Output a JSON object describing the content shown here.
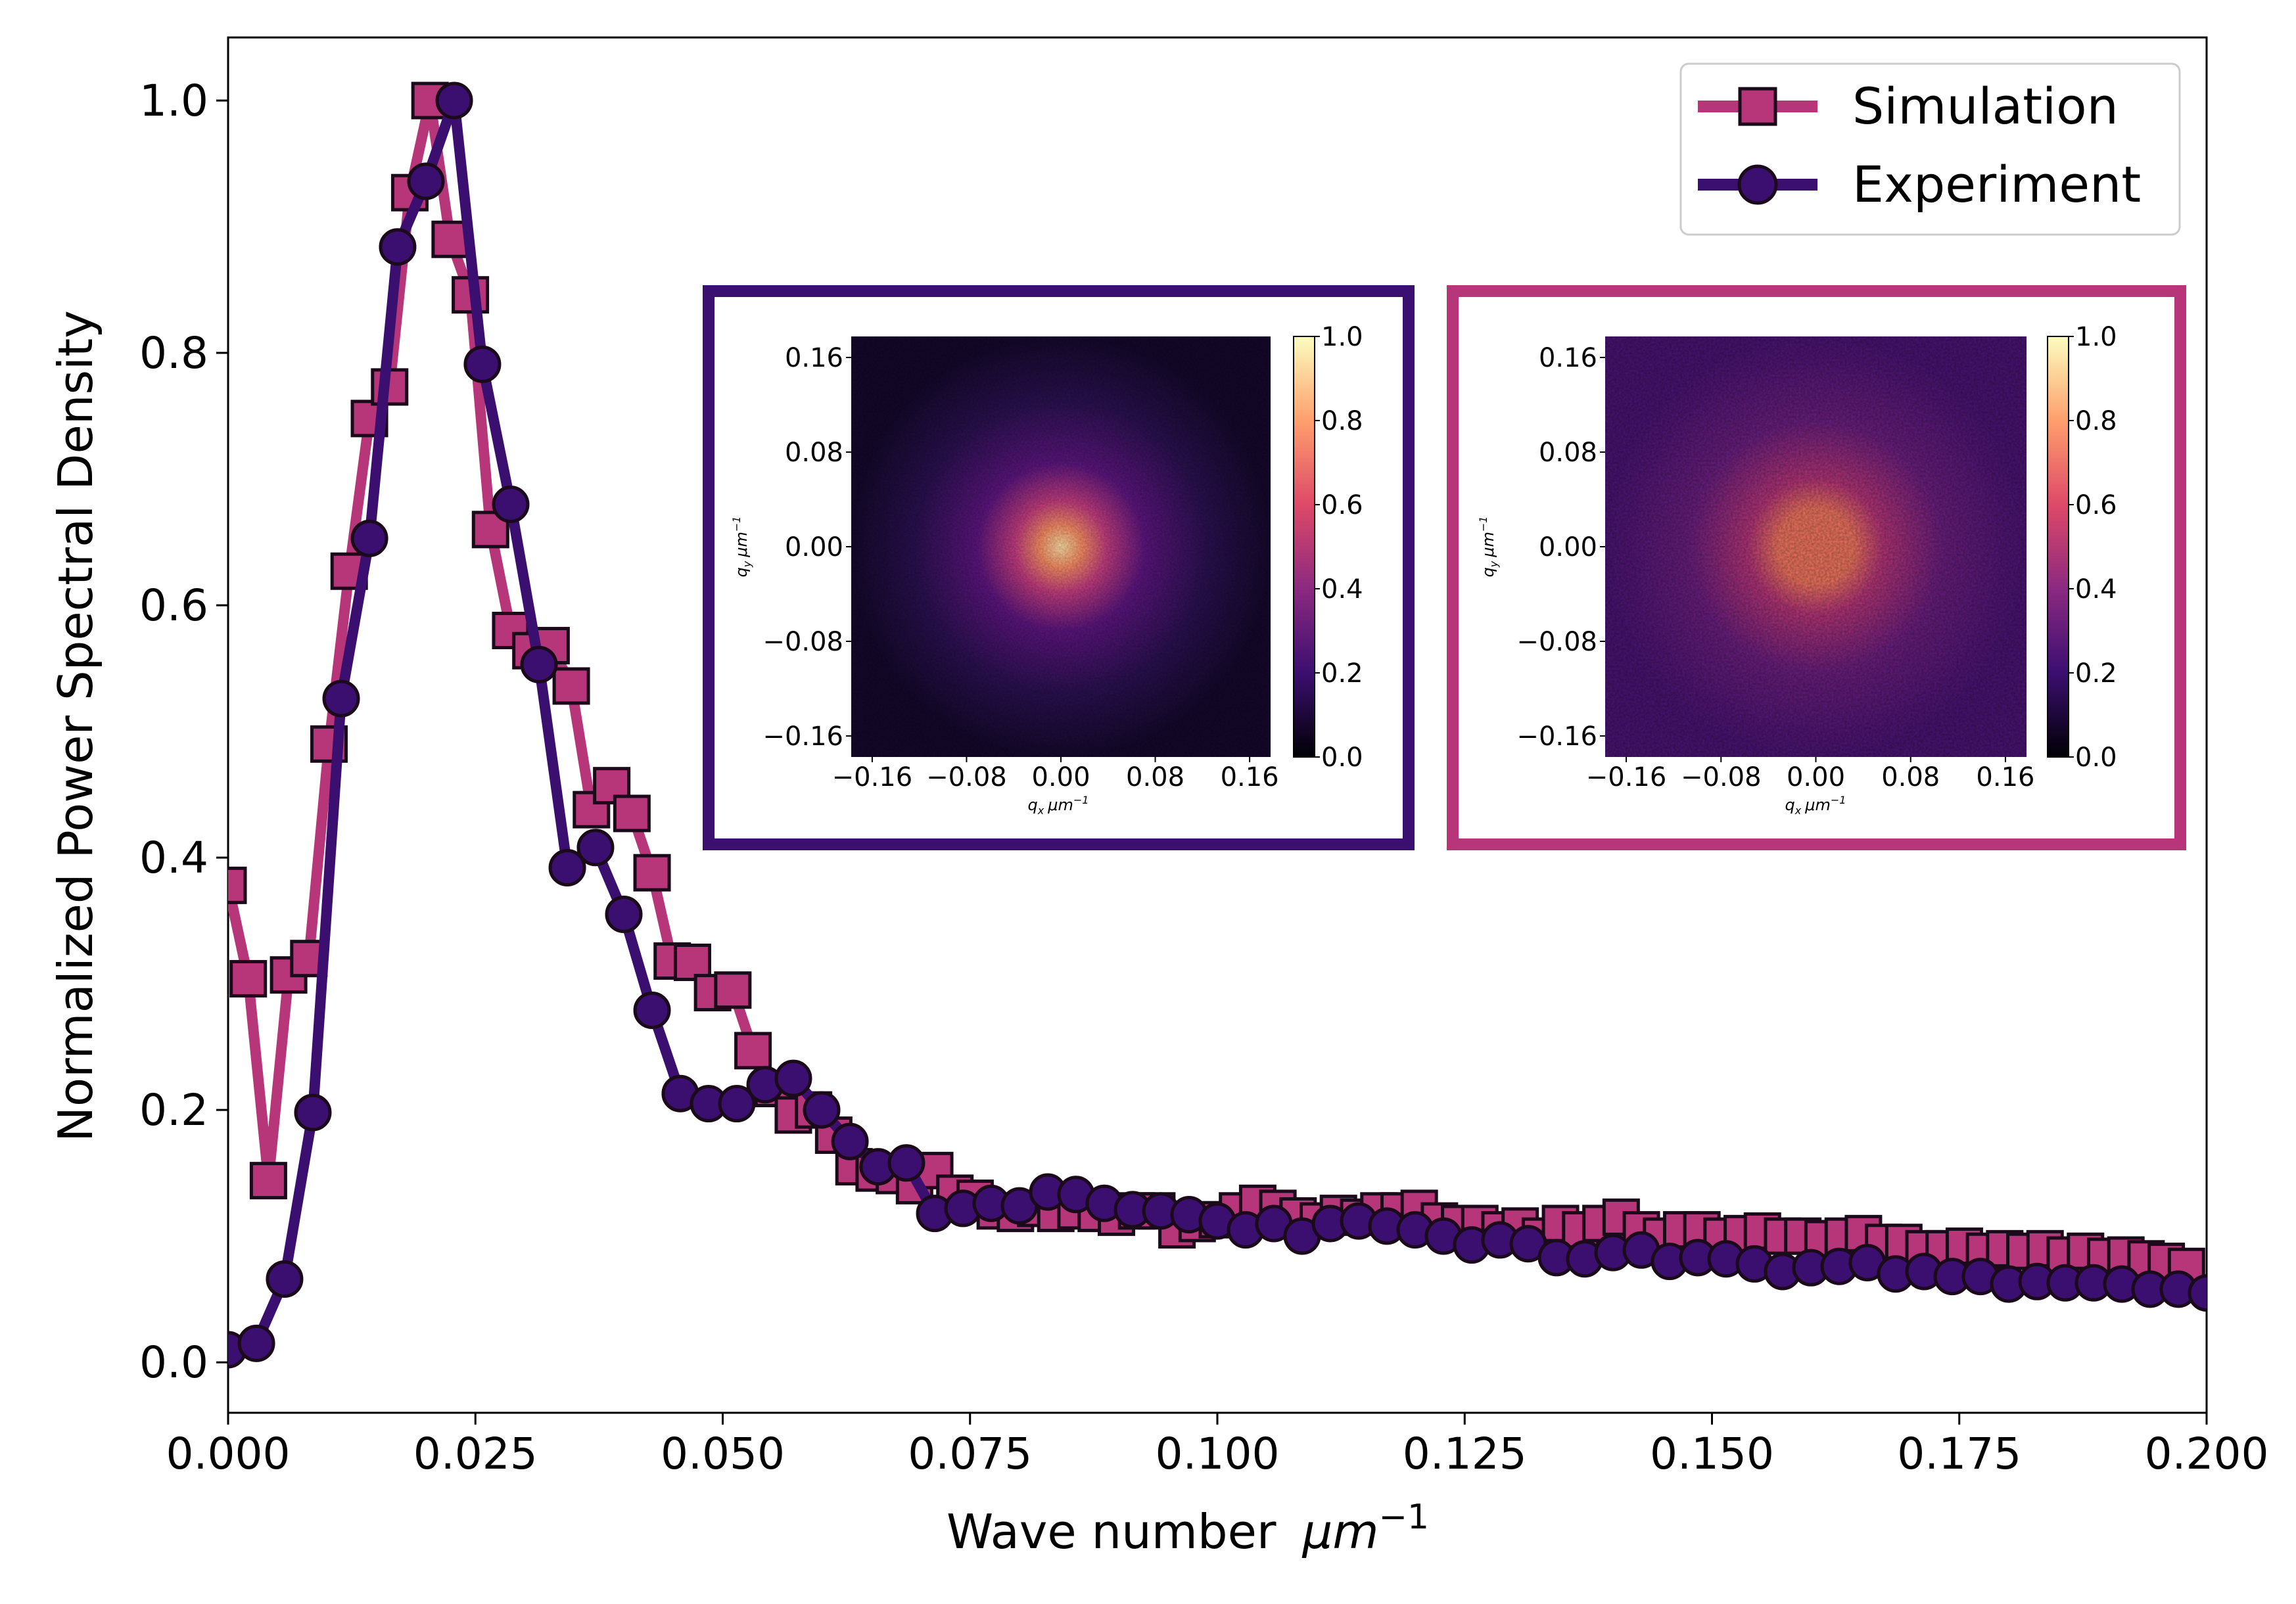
{
  "colors": {
    "simulation": "#b63679",
    "experiment": "#3b0f70",
    "edge": "#1a0a1a"
  },
  "chart_data": {
    "type": "line",
    "title": "",
    "xlabel": "Wave number",
    "xlabel_unit": "μm",
    "xlabel_unit_exp": "−1",
    "ylabel": "Normalized Power Spectral Density",
    "xlim": [
      0.0,
      0.2
    ],
    "ylim": [
      -0.04,
      1.05
    ],
    "x_ticks": [
      0.0,
      0.025,
      0.05,
      0.075,
      0.1,
      0.125,
      0.15,
      0.175,
      0.2
    ],
    "x_tick_labels": [
      "0.000",
      "0.025",
      "0.050",
      "0.075",
      "0.100",
      "0.125",
      "0.150",
      "0.175",
      "0.200"
    ],
    "y_ticks": [
      0.0,
      0.2,
      0.4,
      0.6,
      0.8,
      1.0
    ],
    "y_tick_labels": [
      "0.0",
      "0.2",
      "0.4",
      "0.6",
      "0.8",
      "1.0"
    ],
    "legend_position": "top-right",
    "series": [
      {
        "name": "Simulation",
        "marker": "square",
        "x": [
          0.0,
          0.00204,
          0.00408,
          0.00612,
          0.00816,
          0.0102,
          0.01224,
          0.01429,
          0.01633,
          0.01837,
          0.02041,
          0.02245,
          0.02449,
          0.02653,
          0.02857,
          0.03061,
          0.03265,
          0.03469,
          0.03673,
          0.03878,
          0.04082,
          0.04286,
          0.0449,
          0.04694,
          0.04898,
          0.05102,
          0.05306,
          0.0551,
          0.05714,
          0.05918,
          0.06122,
          0.06327,
          0.06531,
          0.06735,
          0.06939,
          0.07143,
          0.07347,
          0.07551,
          0.07755,
          0.07959,
          0.08163,
          0.08367,
          0.08571,
          0.08776,
          0.0898,
          0.09184,
          0.09388,
          0.09592,
          0.09796,
          0.1,
          0.10204,
          0.10408,
          0.10612,
          0.10816,
          0.1102,
          0.11224,
          0.11429,
          0.11633,
          0.11837,
          0.12041,
          0.12245,
          0.12449,
          0.12653,
          0.12857,
          0.13061,
          0.13265,
          0.13469,
          0.13673,
          0.13878,
          0.14082,
          0.14286,
          0.1449,
          0.14694,
          0.14898,
          0.15102,
          0.15306,
          0.1551,
          0.15714,
          0.15918,
          0.16122,
          0.16327,
          0.16531,
          0.16735,
          0.16939,
          0.17143,
          0.17347,
          0.17551,
          0.17755,
          0.17959,
          0.18163,
          0.18367,
          0.18571,
          0.18776,
          0.1898,
          0.19184,
          0.19388,
          0.19592,
          0.19796
        ],
        "values": [
          0.378,
          0.304,
          0.144,
          0.307,
          0.32,
          0.49,
          0.627,
          0.748,
          0.773,
          0.927,
          1.0,
          0.89,
          0.846,
          0.66,
          0.58,
          0.564,
          0.568,
          0.536,
          0.438,
          0.457,
          0.435,
          0.388,
          0.318,
          0.317,
          0.293,
          0.295,
          0.247,
          0.217,
          0.196,
          0.2,
          0.18,
          0.155,
          0.15,
          0.148,
          0.14,
          0.152,
          0.134,
          0.13,
          0.12,
          0.118,
          0.122,
          0.118,
          0.12,
          0.118,
          0.115,
          0.12,
          0.12,
          0.105,
          0.11,
          0.113,
          0.12,
          0.126,
          0.122,
          0.116,
          0.112,
          0.118,
          0.115,
          0.12,
          0.12,
          0.122,
          0.112,
          0.11,
          0.11,
          0.105,
          0.108,
          0.1,
          0.11,
          0.105,
          0.11,
          0.115,
          0.105,
          0.1,
          0.105,
          0.105,
          0.1,
          0.102,
          0.104,
          0.1,
          0.1,
          0.098,
          0.1,
          0.102,
          0.095,
          0.095,
          0.09,
          0.09,
          0.092,
          0.088,
          0.09,
          0.088,
          0.09,
          0.085,
          0.088,
          0.084,
          0.085,
          0.082,
          0.08,
          0.076
        ]
      },
      {
        "name": "Experiment",
        "marker": "circle",
        "x": [
          0.0,
          0.00286,
          0.00571,
          0.00857,
          0.01143,
          0.01429,
          0.01714,
          0.02,
          0.02286,
          0.02571,
          0.02857,
          0.03143,
          0.03429,
          0.03714,
          0.04,
          0.04286,
          0.04571,
          0.04857,
          0.05143,
          0.05429,
          0.05714,
          0.06,
          0.06286,
          0.06571,
          0.06857,
          0.07143,
          0.07429,
          0.07714,
          0.08,
          0.08286,
          0.08571,
          0.08857,
          0.09143,
          0.09429,
          0.09714,
          0.1,
          0.10286,
          0.10571,
          0.10857,
          0.11143,
          0.11429,
          0.11714,
          0.12,
          0.12286,
          0.12571,
          0.12857,
          0.13143,
          0.13429,
          0.13714,
          0.14,
          0.14286,
          0.14571,
          0.14857,
          0.15143,
          0.15429,
          0.15714,
          0.16,
          0.16286,
          0.16571,
          0.16857,
          0.17143,
          0.17429,
          0.17714,
          0.18,
          0.18286,
          0.18571,
          0.18857,
          0.19143,
          0.19429,
          0.19714,
          0.2
        ],
        "values": [
          0.01,
          0.015,
          0.066,
          0.198,
          0.526,
          0.653,
          0.884,
          0.936,
          1.0,
          0.791,
          0.68,
          0.553,
          0.392,
          0.408,
          0.355,
          0.279,
          0.213,
          0.205,
          0.205,
          0.22,
          0.225,
          0.2,
          0.175,
          0.155,
          0.158,
          0.118,
          0.122,
          0.126,
          0.124,
          0.135,
          0.133,
          0.126,
          0.121,
          0.12,
          0.117,
          0.112,
          0.105,
          0.11,
          0.1,
          0.11,
          0.112,
          0.108,
          0.105,
          0.1,
          0.093,
          0.097,
          0.094,
          0.083,
          0.082,
          0.087,
          0.089,
          0.08,
          0.083,
          0.082,
          0.078,
          0.072,
          0.075,
          0.076,
          0.079,
          0.07,
          0.072,
          0.068,
          0.068,
          0.062,
          0.064,
          0.063,
          0.063,
          0.062,
          0.058,
          0.058,
          0.055
        ]
      }
    ],
    "insets": [
      {
        "name": "Experiment",
        "xlabel": "q",
        "xlabel_sub": "x",
        "ylabel": "q",
        "ylabel_sub": "y",
        "unit": "μm",
        "unit_exp": "−1",
        "x_tick_labels": [
          "−0.16",
          "−0.08",
          "0.00",
          "0.08",
          "0.16"
        ],
        "y_tick_labels": [
          "0.16",
          "0.08",
          "0.00",
          "−0.08",
          "−0.16"
        ],
        "colorbar_labels": [
          "1.0",
          "0.8",
          "0.6",
          "0.4",
          "0.2",
          "0.0"
        ],
        "colormap": "magma"
      },
      {
        "name": "Simulation",
        "xlabel": "q",
        "xlabel_sub": "x",
        "ylabel": "q",
        "ylabel_sub": "y",
        "unit": "μm",
        "unit_exp": "−1",
        "x_tick_labels": [
          "−0.16",
          "−0.08",
          "0.00",
          "0.08",
          "0.16"
        ],
        "y_tick_labels": [
          "0.16",
          "0.08",
          "0.00",
          "−0.08",
          "−0.16"
        ],
        "colorbar_labels": [
          "1.0",
          "0.8",
          "0.6",
          "0.4",
          "0.2",
          "0.0"
        ],
        "colormap": "magma"
      }
    ]
  }
}
